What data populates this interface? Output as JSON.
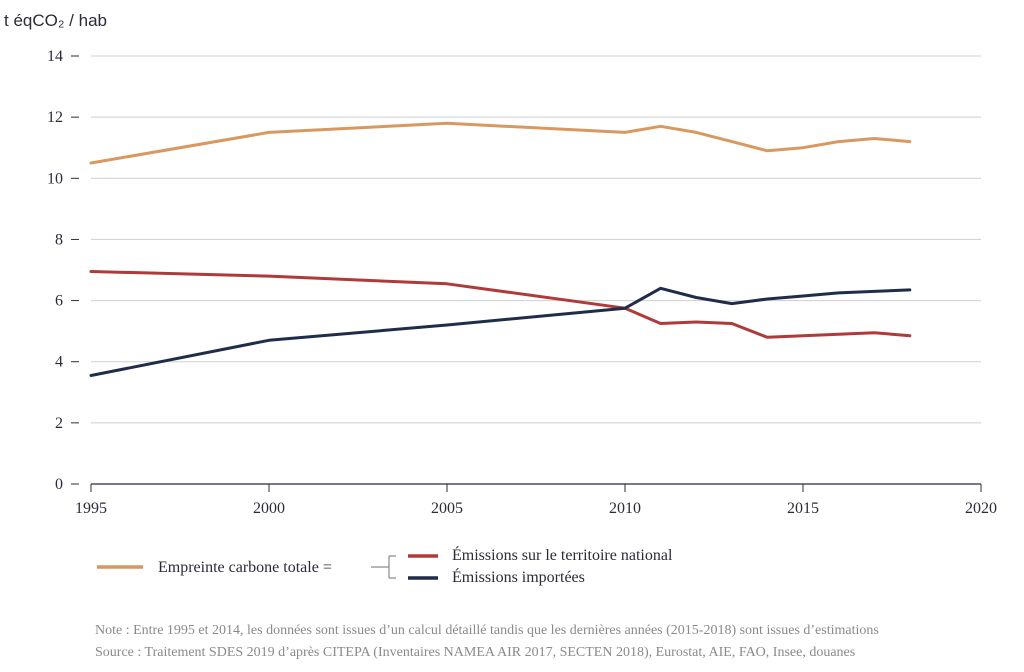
{
  "chart_data": {
    "type": "line",
    "ylabel": "t éqCO₂ / hab",
    "xlim": [
      1995,
      2020
    ],
    "ylim": [
      0,
      14
    ],
    "x_ticks": [
      "1995",
      "2000",
      "2005",
      "2010",
      "2015",
      "2020"
    ],
    "y_ticks": [
      "0",
      "2",
      "4",
      "6",
      "8",
      "10",
      "12",
      "14"
    ],
    "grid": "horizontal",
    "series": [
      {
        "name": "Empreinte carbone totale =",
        "color": "#d9985f",
        "points": [
          [
            1995,
            10.5
          ],
          [
            2000,
            11.5
          ],
          [
            2005,
            11.8
          ],
          [
            2010,
            11.5
          ],
          [
            2011,
            11.7
          ],
          [
            2012,
            11.5
          ],
          [
            2013,
            11.2
          ],
          [
            2014,
            10.9
          ],
          [
            2015,
            11.0
          ],
          [
            2016,
            11.2
          ],
          [
            2017,
            11.3
          ],
          [
            2018,
            11.2
          ]
        ]
      },
      {
        "name": "Émissions sur le territoire national",
        "color": "#b03a3a",
        "points": [
          [
            1995,
            6.95
          ],
          [
            2000,
            6.8
          ],
          [
            2005,
            6.55
          ],
          [
            2010,
            5.75
          ],
          [
            2011,
            5.25
          ],
          [
            2012,
            5.3
          ],
          [
            2013,
            5.25
          ],
          [
            2014,
            4.8
          ],
          [
            2015,
            4.85
          ],
          [
            2016,
            4.9
          ],
          [
            2017,
            4.95
          ],
          [
            2018,
            4.85
          ]
        ]
      },
      {
        "name": "Émissions importées",
        "color": "#1f2c4a",
        "points": [
          [
            1995,
            3.55
          ],
          [
            2000,
            4.7
          ],
          [
            2005,
            5.2
          ],
          [
            2010,
            5.75
          ],
          [
            2011,
            6.4
          ],
          [
            2012,
            6.1
          ],
          [
            2013,
            5.9
          ],
          [
            2014,
            6.05
          ],
          [
            2015,
            6.15
          ],
          [
            2016,
            6.25
          ],
          [
            2017,
            6.3
          ],
          [
            2018,
            6.35
          ]
        ]
      }
    ],
    "legend_position": "bottom-left",
    "note": "Note : Entre 1995 et 2014, les données sont issues d’un calcul détaillé tandis que les dernières années (2015-2018) sont issues d’estimations",
    "source": "Source : Traitement SDES 2019 d’après CITEPA (Inventaires NAMEA AIR 2017, SECTEN 2018), Eurostat, AIE, FAO, Insee, douanes"
  }
}
